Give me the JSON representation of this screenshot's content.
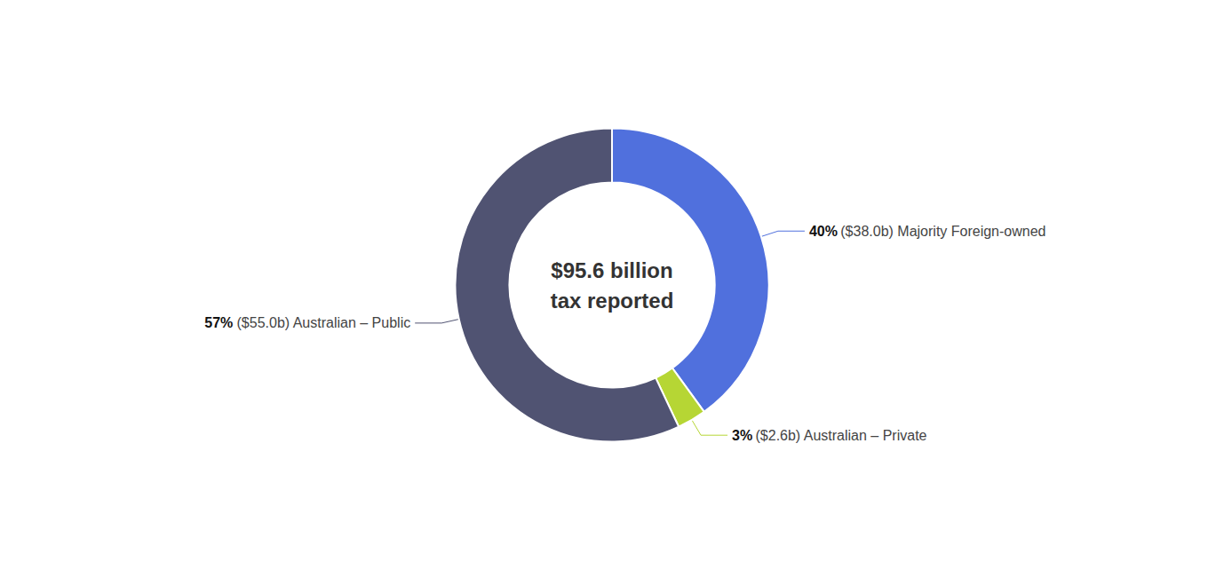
{
  "chart_data": {
    "type": "donut",
    "categories": [
      "($38.0b) Majority Foreign-owned",
      "($2.6b) Australian – Private",
      "($55.0b) Australian – Public"
    ],
    "values": [
      40,
      3,
      57
    ],
    "value_labels": [
      "40%",
      "3%",
      "57%"
    ],
    "data_labels": true,
    "annotations": [
      "$95.6 billion",
      "tax reported"
    ]
  }
}
